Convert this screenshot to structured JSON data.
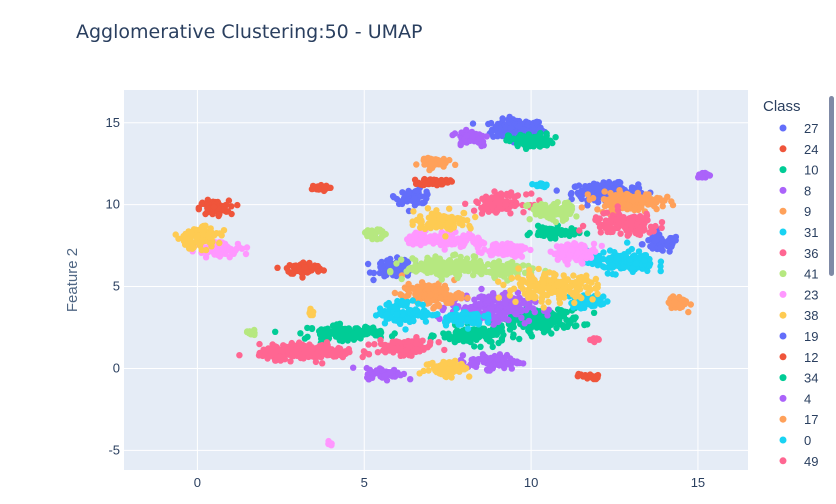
{
  "chart_data": {
    "type": "scatter",
    "title": "Agglomerative Clustering:50 - UMAP",
    "xlabel": "",
    "ylabel": "Feature 2",
    "xlim": [
      -2.2,
      16.5
    ],
    "ylim": [
      -6.2,
      17
    ],
    "xticks": [
      0,
      5,
      10,
      15
    ],
    "yticks": [
      -5,
      0,
      5,
      10,
      15
    ],
    "grid": true,
    "legend_title": "Class",
    "legend_position": "right",
    "series": [
      {
        "name": "27",
        "color": "#636efa",
        "clusters": [
          [
            9.6,
            14.6,
            0.7,
            0.55,
            90
          ],
          [
            12.2,
            10.8,
            0.9,
            0.45,
            80
          ],
          [
            13.9,
            7.6,
            0.5,
            0.5,
            30
          ],
          [
            5.9,
            6.1,
            0.5,
            0.5,
            40
          ],
          [
            6.5,
            10.5,
            0.5,
            0.4,
            25
          ]
        ]
      },
      {
        "name": "24",
        "color": "#EF553B",
        "clusters": [
          [
            0.5,
            9.8,
            0.4,
            0.4,
            40
          ],
          [
            3.2,
            6.1,
            0.5,
            0.35,
            40
          ],
          [
            7.1,
            11.4,
            0.4,
            0.2,
            25
          ],
          [
            3.6,
            11.0,
            0.3,
            0.15,
            15
          ],
          [
            11.7,
            -0.5,
            0.3,
            0.15,
            12
          ]
        ]
      },
      {
        "name": "10",
        "color": "#00cc96",
        "clusters": [
          [
            10.0,
            13.9,
            0.6,
            0.4,
            40
          ],
          [
            10.3,
            3.0,
            1.1,
            0.6,
            100
          ],
          [
            4.4,
            2.2,
            1.0,
            0.4,
            60
          ],
          [
            8.3,
            2.0,
            0.9,
            0.5,
            60
          ],
          [
            10.7,
            8.3,
            0.6,
            0.3,
            35
          ]
        ]
      },
      {
        "name": "8",
        "color": "#ab63fa",
        "clusters": [
          [
            8.8,
            3.7,
            1.1,
            0.8,
            110
          ],
          [
            8.9,
            0.4,
            0.7,
            0.4,
            45
          ],
          [
            8.2,
            14.1,
            0.5,
            0.5,
            30
          ],
          [
            5.6,
            -0.3,
            0.5,
            0.3,
            30
          ],
          [
            15.2,
            11.8,
            0.2,
            0.15,
            10
          ]
        ]
      },
      {
        "name": "9",
        "color": "#FFA15A",
        "clusters": [
          [
            12.9,
            10.2,
            0.9,
            0.5,
            80
          ],
          [
            7.0,
            4.5,
            0.8,
            0.6,
            70
          ],
          [
            14.4,
            4.0,
            0.25,
            0.4,
            25
          ],
          [
            7.0,
            12.6,
            0.4,
            0.3,
            20
          ]
        ]
      },
      {
        "name": "31",
        "color": "#19d3f3",
        "clusters": [
          [
            12.7,
            6.5,
            0.9,
            0.6,
            70
          ],
          [
            6.2,
            3.4,
            0.7,
            0.6,
            60
          ],
          [
            11.7,
            4.1,
            0.5,
            0.4,
            30
          ],
          [
            7.9,
            3.1,
            0.6,
            0.4,
            35
          ],
          [
            10.3,
            11.2,
            0.2,
            0.15,
            10
          ]
        ]
      },
      {
        "name": "36",
        "color": "#FF6692",
        "clusters": [
          [
            3.3,
            1.0,
            1.3,
            0.4,
            110
          ],
          [
            12.8,
            8.8,
            0.9,
            0.6,
            70
          ],
          [
            9.1,
            10.1,
            0.7,
            0.5,
            55
          ],
          [
            6.2,
            1.3,
            0.8,
            0.4,
            55
          ],
          [
            11.9,
            1.7,
            0.1,
            0.2,
            6
          ]
        ]
      },
      {
        "name": "41",
        "color": "#B6E880",
        "clusters": [
          [
            7.6,
            6.2,
            1.2,
            0.5,
            100
          ],
          [
            10.6,
            9.6,
            0.6,
            0.5,
            45
          ],
          [
            9.2,
            6.0,
            0.6,
            0.4,
            40
          ],
          [
            5.3,
            8.2,
            0.3,
            0.25,
            15
          ],
          [
            1.6,
            2.2,
            0.2,
            0.15,
            8
          ]
        ]
      },
      {
        "name": "23",
        "color": "#FF97FF",
        "clusters": [
          [
            0.7,
            7.3,
            0.6,
            0.4,
            40
          ],
          [
            11.3,
            7.1,
            0.6,
            0.5,
            45
          ],
          [
            7.3,
            7.9,
            1.0,
            0.4,
            60
          ],
          [
            9.2,
            7.3,
            0.6,
            0.4,
            40
          ],
          [
            4.0,
            -4.6,
            0.1,
            0.1,
            3
          ]
        ]
      },
      {
        "name": "38",
        "color": "#FECB52",
        "clusters": [
          [
            0.0,
            8.0,
            0.6,
            0.6,
            50
          ],
          [
            10.6,
            5.0,
            1.2,
            0.7,
            100
          ],
          [
            7.5,
            0.0,
            0.6,
            0.5,
            35
          ],
          [
            7.4,
            9.0,
            0.8,
            0.5,
            45
          ],
          [
            3.4,
            3.4,
            0.1,
            0.2,
            5
          ]
        ]
      }
    ]
  }
}
